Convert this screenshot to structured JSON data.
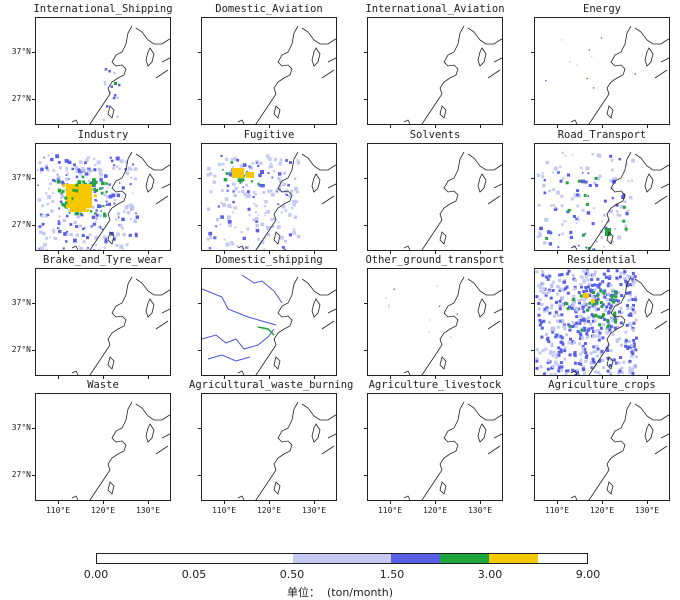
{
  "panels": [
    {
      "title": "International_Shipping",
      "density": "low-coast"
    },
    {
      "title": "Domestic_Aviation",
      "density": "none"
    },
    {
      "title": "International_Aviation",
      "density": "none"
    },
    {
      "title": "Energy",
      "density": "trace"
    },
    {
      "title": "Industry",
      "density": "high"
    },
    {
      "title": "Fugitive",
      "density": "medium"
    },
    {
      "title": "Solvents",
      "density": "none"
    },
    {
      "title": "Road_Transport",
      "density": "medium-low"
    },
    {
      "title": "Brake_and_Tyre_wear",
      "density": "none"
    },
    {
      "title": "Domestic_shipping",
      "density": "rivers"
    },
    {
      "title": "Other_ground_transport",
      "density": "trace"
    },
    {
      "title": "Residential",
      "density": "very-high"
    },
    {
      "title": "Waste",
      "density": "none"
    },
    {
      "title": "Agricultural_waste_burning",
      "density": "none"
    },
    {
      "title": "Agriculture_livestock",
      "density": "none"
    },
    {
      "title": "Agriculture_crops",
      "density": "none"
    }
  ],
  "y_ticks": [
    "37°N",
    "27°N"
  ],
  "x_ticks": [
    "110°E",
    "120°E",
    "130°E"
  ],
  "colorbar": {
    "labels": [
      "0.00",
      "0.05",
      "0.50",
      "1.50",
      "3.00",
      "9.00"
    ],
    "colors": [
      "#ffffff",
      "#ffffff",
      "#c4c8f2",
      "#5a5fe8",
      "#1ea63c",
      "#f6c800"
    ],
    "unit_label": "单位：  (ton/month)"
  },
  "colors": {
    "light": "#c4c8f2",
    "blue": "#5a5fe8",
    "green": "#1ea63c",
    "yellow": "#f6c800",
    "river": "#4a55d8"
  }
}
